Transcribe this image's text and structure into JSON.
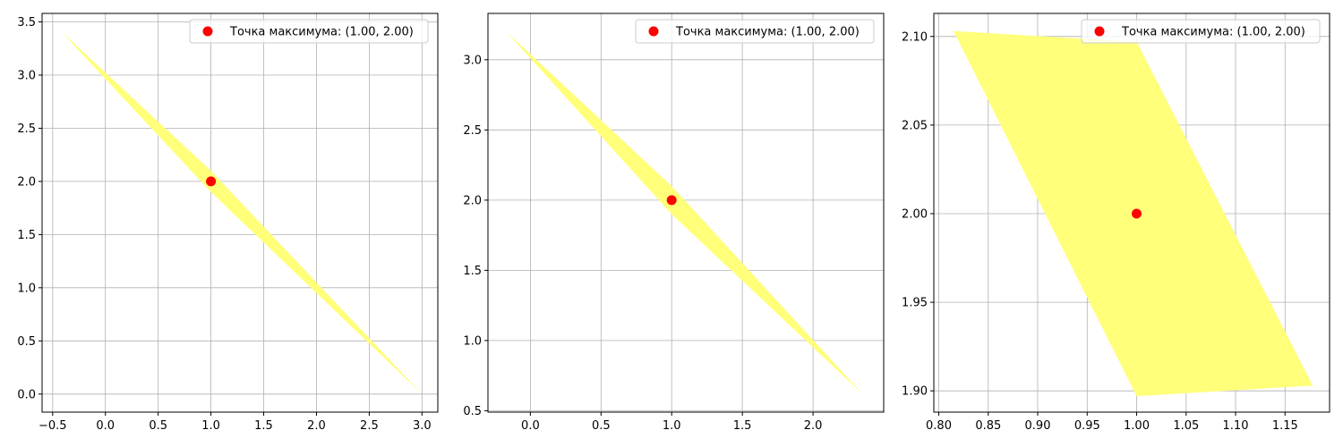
{
  "chart_data": [
    {
      "type": "area",
      "title": "",
      "xlabel": "",
      "ylabel": "",
      "xlim": [
        -0.6,
        3.15
      ],
      "ylim": [
        -0.17,
        3.58
      ],
      "xticks": [
        -0.5,
        0.0,
        0.5,
        1.0,
        1.5,
        2.0,
        2.5,
        3.0
      ],
      "yticks": [
        0.0,
        0.5,
        1.0,
        1.5,
        2.0,
        2.5,
        3.0,
        3.5
      ],
      "xtick_labels": [
        "−0.5",
        "0.0",
        "0.5",
        "1.0",
        "1.5",
        "2.0",
        "2.5",
        "3.0"
      ],
      "ytick_labels": [
        "0.0",
        "0.5",
        "1.0",
        "1.5",
        "2.0",
        "2.5",
        "3.0",
        "3.5"
      ],
      "grid": true,
      "legend_placement": "top-right",
      "region": {
        "color": "#ffff7a",
        "points": [
          [
            -0.43,
            3.42
          ],
          [
            1.0,
            2.1
          ],
          [
            3.0,
            0.0
          ],
          [
            1.0,
            1.9
          ]
        ]
      },
      "point": {
        "x": 1.0,
        "y": 2.0,
        "color": "#ff0000",
        "label": "Точка максимума: (1.00, 2.00)"
      }
    },
    {
      "type": "area",
      "title": "",
      "xlabel": "",
      "ylabel": "",
      "xlim": [
        -0.3,
        2.5
      ],
      "ylim": [
        0.49,
        3.33
      ],
      "xticks": [
        0.0,
        0.5,
        1.0,
        1.5,
        2.0
      ],
      "yticks": [
        0.5,
        1.0,
        1.5,
        2.0,
        2.5,
        3.0
      ],
      "xtick_labels": [
        "0.0",
        "0.5",
        "1.0",
        "1.5",
        "2.0"
      ],
      "ytick_labels": [
        "0.5",
        "1.0",
        "1.5",
        "2.0",
        "2.5",
        "3.0"
      ],
      "grid": true,
      "legend_placement": "top-right",
      "region": {
        "color": "#ffff7a",
        "points": [
          [
            -0.17,
            3.2
          ],
          [
            1.0,
            2.1
          ],
          [
            2.35,
            0.62
          ],
          [
            1.0,
            1.9
          ]
        ]
      },
      "point": {
        "x": 1.0,
        "y": 2.0,
        "color": "#ff0000",
        "label": "Точка максимума: (1.00, 2.00)"
      }
    },
    {
      "type": "area",
      "title": "",
      "xlabel": "",
      "ylabel": "",
      "xlim": [
        0.795,
        1.195
      ],
      "ylim": [
        1.888,
        2.113
      ],
      "xticks": [
        0.8,
        0.85,
        0.9,
        0.95,
        1.0,
        1.05,
        1.1,
        1.15
      ],
      "yticks": [
        1.9,
        1.95,
        2.0,
        2.05,
        2.1
      ],
      "xtick_labels": [
        "0.80",
        "0.85",
        "0.90",
        "0.95",
        "1.00",
        "1.05",
        "1.10",
        "1.15"
      ],
      "ytick_labels": [
        "1.90",
        "1.95",
        "2.00",
        "2.05",
        "2.10"
      ],
      "grid": true,
      "legend_placement": "top-right",
      "region": {
        "color": "#ffff7a",
        "points": [
          [
            0.815,
            2.103
          ],
          [
            1.0,
            2.097
          ],
          [
            1.178,
            1.903
          ],
          [
            1.0,
            1.897
          ]
        ]
      },
      "point": {
        "x": 1.0,
        "y": 2.0,
        "color": "#ff0000",
        "label": "Точка максимума: (1.00, 2.00)"
      }
    }
  ]
}
